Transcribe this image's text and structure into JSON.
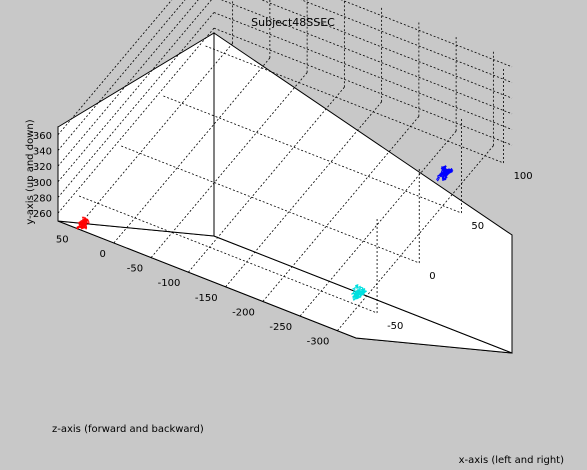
{
  "chart_data": {
    "type": "line",
    "projection": "3d",
    "title": "Subject48SSEC",
    "xlabel": "x-axis (left and right)",
    "ylabel": "y-axis (up and down)",
    "zlabel": "z-axis (forward and backward)",
    "grid": true,
    "x_ticks": [
      -50,
      0,
      50,
      100
    ],
    "y_ticks": [
      260,
      280,
      300,
      320,
      340,
      360
    ],
    "z_ticks": [
      50,
      0,
      -50,
      -100,
      -150,
      -200,
      -250,
      -300
    ],
    "xlim": [
      -75,
      110
    ],
    "ylim": [
      250,
      370
    ],
    "zlim": [
      -325,
      75
    ],
    "series": [
      {
        "color": "#ff0000",
        "center": {
          "x": -75,
          "y": 262,
          "z": 40
        },
        "spread": {
          "x": 8,
          "y": 6,
          "z": 12
        }
      },
      {
        "color": "#00e0e0",
        "center": {
          "x": -50,
          "y": 268,
          "z": -300
        },
        "spread": {
          "x": 12,
          "y": 4,
          "z": 14
        }
      },
      {
        "color": "#0000ff",
        "center": {
          "x": 60,
          "y": 272,
          "z": -290
        },
        "spread": {
          "x": 10,
          "y": 8,
          "z": 12
        }
      }
    ]
  }
}
